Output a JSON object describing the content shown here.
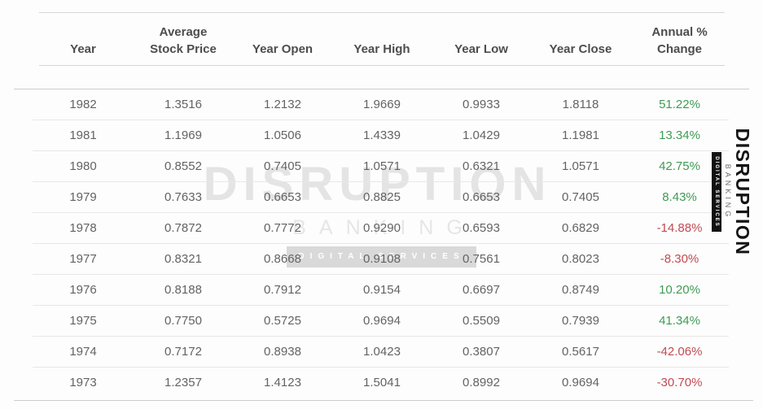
{
  "watermark": {
    "title": "DISRUPTION",
    "subtitle": "BANKING",
    "badge": "DIGITAL SERVICES"
  },
  "side_logo": {
    "title": "DISRUPTION",
    "subtitle": "BANKING",
    "badge": "DIGITAL SERVICES"
  },
  "colors": {
    "positive": "#3f9b55",
    "negative": "#c14b52",
    "cell_text": "#636363",
    "header_text": "#4d4d4d"
  },
  "table": {
    "headers": [
      {
        "line1": "",
        "line2": "Year"
      },
      {
        "line1": "Average",
        "line2": "Stock Price"
      },
      {
        "line1": "",
        "line2": "Year Open"
      },
      {
        "line1": "",
        "line2": "Year High"
      },
      {
        "line1": "",
        "line2": "Year Low"
      },
      {
        "line1": "",
        "line2": "Year Close"
      },
      {
        "line1": "Annual %",
        "line2": "Change"
      }
    ],
    "rows": [
      {
        "year": "1982",
        "avg": "1.3516",
        "open": "1.2132",
        "high": "1.9669",
        "low": "0.9933",
        "close": "1.8118",
        "change": "51.22%",
        "direction": "positive"
      },
      {
        "year": "1981",
        "avg": "1.1969",
        "open": "1.0506",
        "high": "1.4339",
        "low": "1.0429",
        "close": "1.1981",
        "change": "13.34%",
        "direction": "positive"
      },
      {
        "year": "1980",
        "avg": "0.8552",
        "open": "0.7405",
        "high": "1.0571",
        "low": "0.6321",
        "close": "1.0571",
        "change": "42.75%",
        "direction": "positive"
      },
      {
        "year": "1979",
        "avg": "0.7633",
        "open": "0.6653",
        "high": "0.8825",
        "low": "0.6653",
        "close": "0.7405",
        "change": "8.43%",
        "direction": "positive"
      },
      {
        "year": "1978",
        "avg": "0.7872",
        "open": "0.7772",
        "high": "0.9290",
        "low": "0.6593",
        "close": "0.6829",
        "change": "-14.88%",
        "direction": "negative"
      },
      {
        "year": "1977",
        "avg": "0.8321",
        "open": "0.8668",
        "high": "0.9108",
        "low": "0.7561",
        "close": "0.8023",
        "change": "-8.30%",
        "direction": "negative"
      },
      {
        "year": "1976",
        "avg": "0.8188",
        "open": "0.7912",
        "high": "0.9154",
        "low": "0.6697",
        "close": "0.8749",
        "change": "10.20%",
        "direction": "positive"
      },
      {
        "year": "1975",
        "avg": "0.7750",
        "open": "0.5725",
        "high": "0.9694",
        "low": "0.5509",
        "close": "0.7939",
        "change": "41.34%",
        "direction": "positive"
      },
      {
        "year": "1974",
        "avg": "0.7172",
        "open": "0.8938",
        "high": "1.0423",
        "low": "0.3807",
        "close": "0.5617",
        "change": "-42.06%",
        "direction": "negative"
      },
      {
        "year": "1973",
        "avg": "1.2357",
        "open": "1.4123",
        "high": "1.5041",
        "low": "0.8992",
        "close": "0.9694",
        "change": "-30.70%",
        "direction": "negative"
      }
    ]
  },
  "chart_data": {
    "type": "table",
    "columns": [
      "Year",
      "Average Stock Price",
      "Year Open",
      "Year High",
      "Year Low",
      "Year Close",
      "Annual % Change"
    ],
    "rows": [
      [
        1982,
        1.3516,
        1.2132,
        1.9669,
        0.9933,
        1.8118,
        "51.22%"
      ],
      [
        1981,
        1.1969,
        1.0506,
        1.4339,
        1.0429,
        1.1981,
        "13.34%"
      ],
      [
        1980,
        0.8552,
        0.7405,
        1.0571,
        0.6321,
        1.0571,
        "42.75%"
      ],
      [
        1979,
        0.7633,
        0.6653,
        0.8825,
        0.6653,
        0.7405,
        "8.43%"
      ],
      [
        1978,
        0.7872,
        0.7772,
        0.929,
        0.6593,
        0.6829,
        "-14.88%"
      ],
      [
        1977,
        0.8321,
        0.8668,
        0.9108,
        0.7561,
        0.8023,
        "-8.30%"
      ],
      [
        1976,
        0.8188,
        0.7912,
        0.9154,
        0.6697,
        0.8749,
        "10.20%"
      ],
      [
        1975,
        0.775,
        0.5725,
        0.9694,
        0.5509,
        0.7939,
        "41.34%"
      ],
      [
        1974,
        0.7172,
        0.8938,
        1.0423,
        0.3807,
        0.5617,
        "-42.06%"
      ],
      [
        1973,
        1.2357,
        1.4123,
        1.5041,
        0.8992,
        0.9694,
        "-30.70%"
      ]
    ],
    "annual_change_pct": [
      51.22,
      13.34,
      42.75,
      8.43,
      -14.88,
      -8.3,
      10.2,
      41.34,
      -42.06,
      -30.7
    ],
    "notes": "Watermark and side logo read DISRUPTION BANKING / DIGITAL SERVICES"
  }
}
